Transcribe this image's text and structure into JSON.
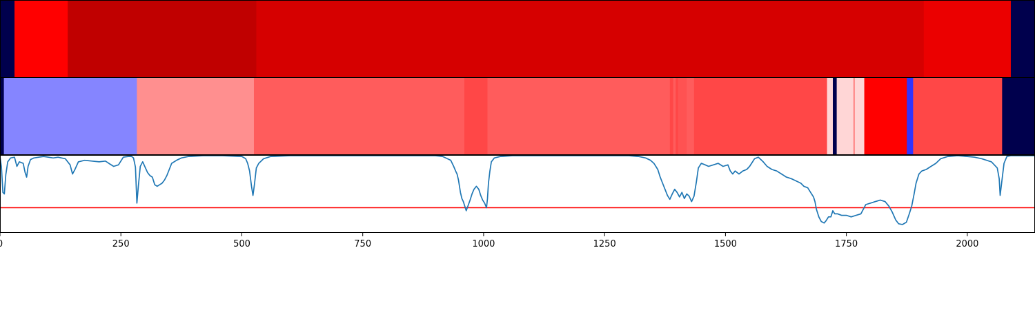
{
  "chart_data": [
    {
      "type": "heatmap",
      "name": "segmentation-track-top",
      "colormap": "seismic",
      "x_range": [
        0,
        2140
      ],
      "segments": [
        {
          "start": 0,
          "end": 30,
          "value": 0.0
        },
        {
          "start": 30,
          "end": 140,
          "value": 0.75
        },
        {
          "start": 140,
          "end": 530,
          "value": 0.875
        },
        {
          "start": 530,
          "end": 1910,
          "value": 0.83
        },
        {
          "start": 1910,
          "end": 2090,
          "value": 0.79
        },
        {
          "start": 2090,
          "end": 2140,
          "value": 0.0
        }
      ]
    },
    {
      "type": "heatmap",
      "name": "segmentation-track-bottom",
      "colormap": "seismic",
      "x_range": [
        0,
        2140
      ],
      "segments": [
        {
          "start": 0,
          "end": 8,
          "value": 0.0
        },
        {
          "start": 8,
          "end": 283,
          "value": 0.38
        },
        {
          "start": 283,
          "end": 525,
          "value": 0.61
        },
        {
          "start": 525,
          "end": 960,
          "value": 0.66
        },
        {
          "start": 960,
          "end": 1008,
          "value": 0.68
        },
        {
          "start": 1008,
          "end": 1385,
          "value": 0.66
        },
        {
          "start": 1385,
          "end": 1392,
          "value": 0.68
        },
        {
          "start": 1392,
          "end": 1397,
          "value": 0.66
        },
        {
          "start": 1397,
          "end": 1402,
          "value": 0.68
        },
        {
          "start": 1402,
          "end": 1420,
          "value": 0.67
        },
        {
          "start": 1420,
          "end": 1435,
          "value": 0.66
        },
        {
          "start": 1435,
          "end": 1710,
          "value": 0.68
        },
        {
          "start": 1710,
          "end": 1722,
          "value": 0.54
        },
        {
          "start": 1722,
          "end": 1730,
          "value": 0.0
        },
        {
          "start": 1730,
          "end": 1765,
          "value": 0.54
        },
        {
          "start": 1765,
          "end": 1767,
          "value": 0.66
        },
        {
          "start": 1767,
          "end": 1787,
          "value": 0.54
        },
        {
          "start": 1787,
          "end": 1875,
          "value": 0.75
        },
        {
          "start": 1875,
          "end": 1888,
          "value": 0.3
        },
        {
          "start": 1888,
          "end": 2072,
          "value": 0.68
        },
        {
          "start": 2072,
          "end": 2140,
          "value": 0.0
        }
      ]
    },
    {
      "type": "line",
      "name": "signal-plot",
      "xlim": [
        0,
        2140
      ],
      "ylim": [
        0,
        1
      ],
      "line_color": "#1f77b4",
      "threshold": {
        "value": 0.32,
        "color": "#ff0000"
      },
      "xticks": [
        0,
        250,
        500,
        750,
        1000,
        1250,
        1500,
        1750,
        2000
      ],
      "xtick_labels": [
        "0",
        "250",
        "500",
        "750",
        "1000",
        "1250",
        "1500",
        "1750",
        "2000"
      ],
      "points": [
        [
          0,
          0.99
        ],
        [
          3,
          0.85
        ],
        [
          6,
          0.52
        ],
        [
          9,
          0.5
        ],
        [
          12,
          0.75
        ],
        [
          16,
          0.92
        ],
        [
          22,
          0.97
        ],
        [
          30,
          0.98
        ],
        [
          35,
          0.86
        ],
        [
          40,
          0.92
        ],
        [
          48,
          0.9
        ],
        [
          52,
          0.78
        ],
        [
          55,
          0.72
        ],
        [
          58,
          0.86
        ],
        [
          63,
          0.95
        ],
        [
          70,
          0.97
        ],
        [
          80,
          0.98
        ],
        [
          90,
          0.99
        ],
        [
          100,
          0.98
        ],
        [
          110,
          0.97
        ],
        [
          120,
          0.98
        ],
        [
          135,
          0.96
        ],
        [
          145,
          0.88
        ],
        [
          150,
          0.76
        ],
        [
          155,
          0.82
        ],
        [
          162,
          0.92
        ],
        [
          175,
          0.94
        ],
        [
          190,
          0.93
        ],
        [
          205,
          0.92
        ],
        [
          218,
          0.93
        ],
        [
          225,
          0.9
        ],
        [
          235,
          0.86
        ],
        [
          245,
          0.88
        ],
        [
          255,
          0.98
        ],
        [
          265,
          0.99
        ],
        [
          272,
          0.99
        ],
        [
          276,
          0.97
        ],
        [
          280,
          0.85
        ],
        [
          283,
          0.38
        ],
        [
          286,
          0.6
        ],
        [
          290,
          0.86
        ],
        [
          295,
          0.92
        ],
        [
          300,
          0.85
        ],
        [
          305,
          0.78
        ],
        [
          310,
          0.74
        ],
        [
          315,
          0.72
        ],
        [
          320,
          0.62
        ],
        [
          325,
          0.6
        ],
        [
          330,
          0.62
        ],
        [
          335,
          0.64
        ],
        [
          340,
          0.68
        ],
        [
          345,
          0.74
        ],
        [
          350,
          0.82
        ],
        [
          355,
          0.9
        ],
        [
          365,
          0.94
        ],
        [
          375,
          0.97
        ],
        [
          390,
          0.99
        ],
        [
          420,
          1.0
        ],
        [
          460,
          1.0
        ],
        [
          500,
          0.99
        ],
        [
          508,
          0.96
        ],
        [
          512,
          0.9
        ],
        [
          516,
          0.8
        ],
        [
          520,
          0.6
        ],
        [
          523,
          0.48
        ],
        [
          526,
          0.62
        ],
        [
          530,
          0.84
        ],
        [
          535,
          0.9
        ],
        [
          545,
          0.96
        ],
        [
          560,
          0.99
        ],
        [
          600,
          1.0
        ],
        [
          900,
          1.0
        ],
        [
          915,
          0.99
        ],
        [
          925,
          0.96
        ],
        [
          932,
          0.94
        ],
        [
          938,
          0.86
        ],
        [
          942,
          0.8
        ],
        [
          945,
          0.76
        ],
        [
          948,
          0.68
        ],
        [
          950,
          0.6
        ],
        [
          952,
          0.52
        ],
        [
          955,
          0.44
        ],
        [
          958,
          0.4
        ],
        [
          961,
          0.34
        ],
        [
          964,
          0.28
        ],
        [
          968,
          0.35
        ],
        [
          972,
          0.42
        ],
        [
          976,
          0.5
        ],
        [
          980,
          0.56
        ],
        [
          985,
          0.6
        ],
        [
          990,
          0.56
        ],
        [
          994,
          0.48
        ],
        [
          998,
          0.42
        ],
        [
          1002,
          0.38
        ],
        [
          1006,
          0.32
        ],
        [
          1008,
          0.44
        ],
        [
          1010,
          0.64
        ],
        [
          1013,
          0.8
        ],
        [
          1016,
          0.92
        ],
        [
          1022,
          0.97
        ],
        [
          1035,
          0.99
        ],
        [
          1060,
          1.0
        ],
        [
          1300,
          1.0
        ],
        [
          1320,
          0.99
        ],
        [
          1335,
          0.97
        ],
        [
          1345,
          0.94
        ],
        [
          1352,
          0.9
        ],
        [
          1360,
          0.82
        ],
        [
          1365,
          0.72
        ],
        [
          1370,
          0.64
        ],
        [
          1375,
          0.56
        ],
        [
          1380,
          0.48
        ],
        [
          1385,
          0.43
        ],
        [
          1390,
          0.5
        ],
        [
          1395,
          0.56
        ],
        [
          1400,
          0.52
        ],
        [
          1405,
          0.46
        ],
        [
          1410,
          0.52
        ],
        [
          1415,
          0.44
        ],
        [
          1420,
          0.5
        ],
        [
          1425,
          0.47
        ],
        [
          1430,
          0.4
        ],
        [
          1435,
          0.47
        ],
        [
          1440,
          0.66
        ],
        [
          1444,
          0.84
        ],
        [
          1450,
          0.9
        ],
        [
          1458,
          0.88
        ],
        [
          1465,
          0.86
        ],
        [
          1475,
          0.88
        ],
        [
          1485,
          0.9
        ],
        [
          1495,
          0.86
        ],
        [
          1505,
          0.88
        ],
        [
          1510,
          0.8
        ],
        [
          1515,
          0.76
        ],
        [
          1520,
          0.8
        ],
        [
          1528,
          0.76
        ],
        [
          1536,
          0.8
        ],
        [
          1544,
          0.82
        ],
        [
          1550,
          0.86
        ],
        [
          1556,
          0.92
        ],
        [
          1560,
          0.96
        ],
        [
          1568,
          0.98
        ],
        [
          1578,
          0.92
        ],
        [
          1586,
          0.86
        ],
        [
          1596,
          0.82
        ],
        [
          1606,
          0.8
        ],
        [
          1616,
          0.76
        ],
        [
          1626,
          0.72
        ],
        [
          1636,
          0.7
        ],
        [
          1646,
          0.67
        ],
        [
          1656,
          0.64
        ],
        [
          1662,
          0.6
        ],
        [
          1670,
          0.58
        ],
        [
          1676,
          0.52
        ],
        [
          1682,
          0.46
        ],
        [
          1685,
          0.4
        ],
        [
          1688,
          0.3
        ],
        [
          1693,
          0.2
        ],
        [
          1698,
          0.14
        ],
        [
          1704,
          0.12
        ],
        [
          1708,
          0.15
        ],
        [
          1713,
          0.2
        ],
        [
          1718,
          0.2
        ],
        [
          1722,
          0.28
        ],
        [
          1726,
          0.24
        ],
        [
          1732,
          0.24
        ],
        [
          1740,
          0.22
        ],
        [
          1750,
          0.22
        ],
        [
          1760,
          0.2
        ],
        [
          1770,
          0.22
        ],
        [
          1780,
          0.24
        ],
        [
          1785,
          0.3
        ],
        [
          1790,
          0.36
        ],
        [
          1800,
          0.38
        ],
        [
          1810,
          0.4
        ],
        [
          1820,
          0.42
        ],
        [
          1830,
          0.4
        ],
        [
          1838,
          0.34
        ],
        [
          1845,
          0.26
        ],
        [
          1852,
          0.16
        ],
        [
          1858,
          0.11
        ],
        [
          1866,
          0.1
        ],
        [
          1874,
          0.13
        ],
        [
          1880,
          0.24
        ],
        [
          1885,
          0.34
        ],
        [
          1890,
          0.5
        ],
        [
          1894,
          0.64
        ],
        [
          1900,
          0.76
        ],
        [
          1906,
          0.8
        ],
        [
          1915,
          0.82
        ],
        [
          1925,
          0.86
        ],
        [
          1935,
          0.9
        ],
        [
          1945,
          0.96
        ],
        [
          1960,
          0.99
        ],
        [
          1980,
          1.0
        ],
        [
          2000,
          0.99
        ],
        [
          2015,
          0.98
        ],
        [
          2030,
          0.96
        ],
        [
          2050,
          0.92
        ],
        [
          2062,
          0.84
        ],
        [
          2066,
          0.7
        ],
        [
          2068,
          0.48
        ],
        [
          2071,
          0.64
        ],
        [
          2076,
          0.9
        ],
        [
          2082,
          0.99
        ],
        [
          2090,
          1.0
        ],
        [
          2140,
          1.0
        ]
      ]
    }
  ]
}
